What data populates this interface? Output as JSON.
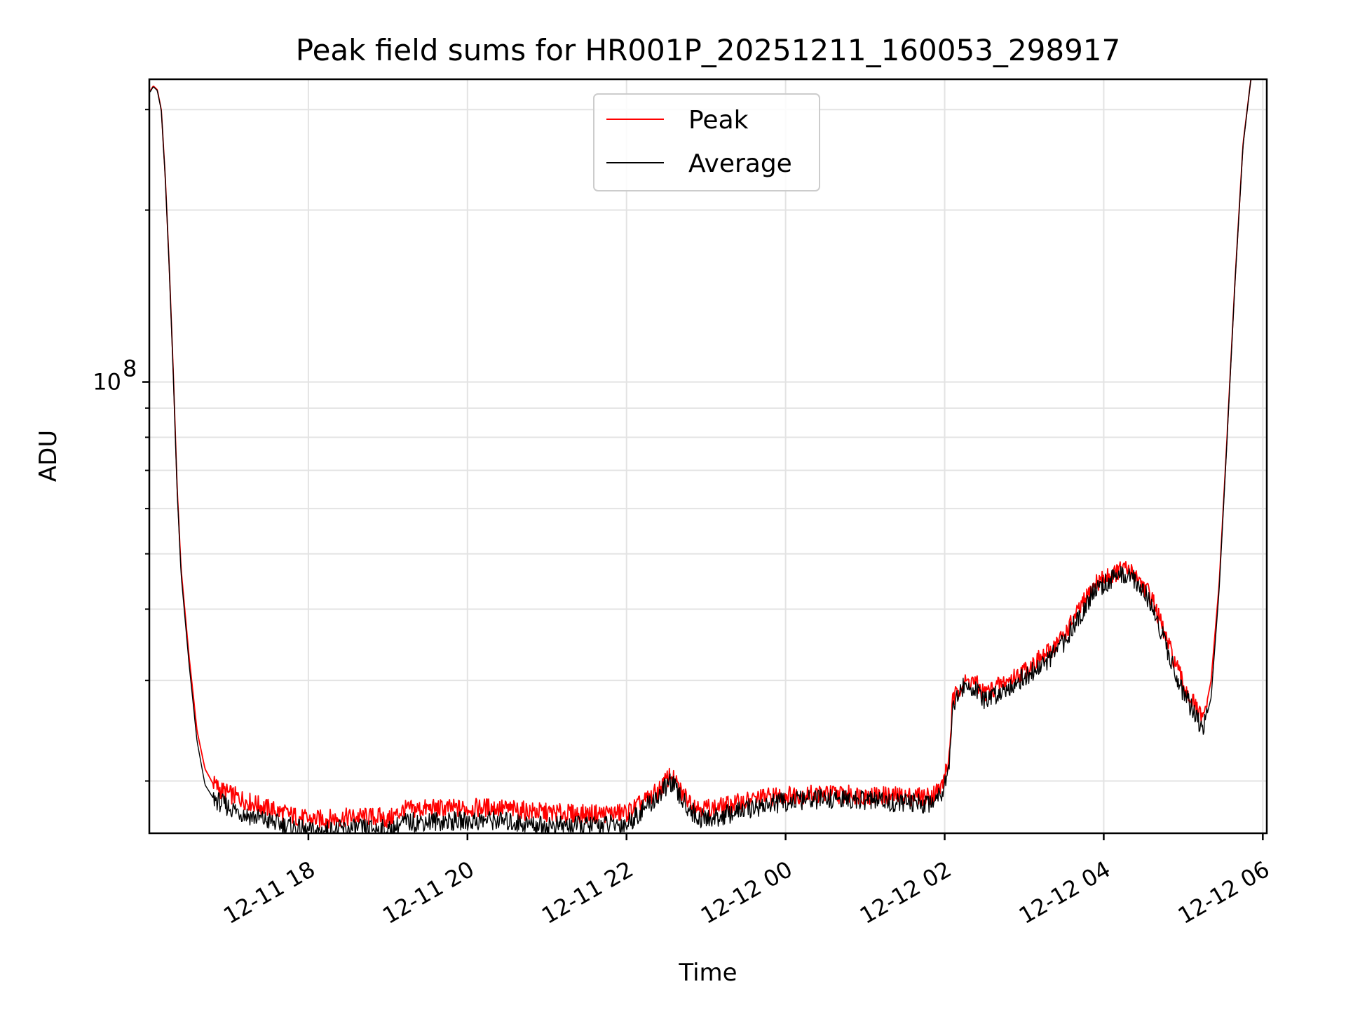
{
  "chart_data": {
    "type": "line",
    "title": "Peak field sums for HR001P_20251211_160053_298917",
    "xlabel": "Time",
    "ylabel": "ADU",
    "yscale": "log",
    "grid": true,
    "legend_position": "upper center",
    "x_unit": "hours since 12-11 16:00",
    "xlim": [
      16.0,
      30.05
    ],
    "ylim": [
      16200000,
      339000000
    ],
    "x_ticks": [
      {
        "value": 18,
        "label": "12-11 18"
      },
      {
        "value": 20,
        "label": "12-11 20"
      },
      {
        "value": 22,
        "label": "12-11 22"
      },
      {
        "value": 24,
        "label": "12-12 00"
      },
      {
        "value": 26,
        "label": "12-12 02"
      },
      {
        "value": 28,
        "label": "12-12 04"
      },
      {
        "value": 30,
        "label": "12-12 06"
      }
    ],
    "y_major_ticks": [
      {
        "value": 100000000,
        "base": "10",
        "exponent": "8"
      }
    ],
    "y_minor_ticks": [
      20000000,
      30000000,
      40000000,
      50000000,
      60000000,
      70000000,
      80000000,
      90000000,
      200000000,
      300000000
    ],
    "series": [
      {
        "name": "Peak",
        "color": "#ff0000",
        "x": [
          16.01,
          16.05,
          16.1,
          16.15,
          16.2,
          16.25,
          16.3,
          16.35,
          16.4,
          16.5,
          16.6,
          16.7,
          16.8,
          16.9,
          17.0,
          17.2,
          17.5,
          17.8,
          18.0,
          18.3,
          18.6,
          18.9,
          19.0,
          19.2,
          19.5,
          19.8,
          20.0,
          20.3,
          20.6,
          21.0,
          21.5,
          22.0,
          22.2,
          22.4,
          22.55,
          22.7,
          22.9,
          23.1,
          23.4,
          23.7,
          24.0,
          24.5,
          25.0,
          25.5,
          25.8,
          25.95,
          26.05,
          26.1,
          26.2,
          26.35,
          26.5,
          26.7,
          26.9,
          27.1,
          27.3,
          27.5,
          27.7,
          27.9,
          28.1,
          28.25,
          28.4,
          28.6,
          28.8,
          29.0,
          29.15,
          29.25,
          29.35,
          29.45,
          29.55,
          29.65,
          29.75,
          29.85,
          29.95,
          30.05
        ],
        "y": [
          323000000,
          330000000,
          325000000,
          300000000,
          230000000,
          160000000,
          105000000,
          65000000,
          47000000,
          33000000,
          24500000,
          21000000,
          19800000,
          19300000,
          19000000,
          18500000,
          17900000,
          17400000,
          17100000,
          17200000,
          17300000,
          17300000,
          17100000,
          17800000,
          17900000,
          17900000,
          17900000,
          18000000,
          17800000,
          17600000,
          17500000,
          17600000,
          18300000,
          19200000,
          20500000,
          19000000,
          18000000,
          17900000,
          18300000,
          18700000,
          18900000,
          19000000,
          18900000,
          18800000,
          18800000,
          19400000,
          21500000,
          27500000,
          29500000,
          30000000,
          28500000,
          29500000,
          30500000,
          32000000,
          33500000,
          36000000,
          40000000,
          44500000,
          46000000,
          47000000,
          46000000,
          42000000,
          35000000,
          29500000,
          27000000,
          25500000,
          30000000,
          44000000,
          80000000,
          150000000,
          260000000,
          339000000,
          339000000,
          339000000
        ]
      },
      {
        "name": "Average",
        "color": "#000000",
        "x": [
          16.01,
          16.05,
          16.1,
          16.15,
          16.2,
          16.25,
          16.3,
          16.35,
          16.4,
          16.5,
          16.6,
          16.7,
          16.8,
          16.9,
          17.0,
          17.2,
          17.5,
          17.8,
          18.0,
          18.3,
          18.6,
          18.9,
          19.0,
          19.2,
          19.5,
          19.8,
          20.0,
          20.3,
          20.6,
          21.0,
          21.5,
          22.0,
          22.2,
          22.4,
          22.55,
          22.7,
          22.9,
          23.1,
          23.4,
          23.7,
          24.0,
          24.5,
          25.0,
          25.5,
          25.8,
          25.95,
          26.05,
          26.1,
          26.2,
          26.35,
          26.5,
          26.7,
          26.9,
          27.1,
          27.3,
          27.5,
          27.7,
          27.9,
          28.1,
          28.25,
          28.4,
          28.6,
          28.8,
          29.0,
          29.15,
          29.25,
          29.35,
          29.45,
          29.55,
          29.65,
          29.75,
          29.85,
          29.95,
          30.05
        ],
        "y": [
          322000000,
          329000000,
          324000000,
          299000000,
          229000000,
          159000000,
          104000000,
          64000000,
          46000000,
          32000000,
          23500000,
          19700000,
          18700000,
          18300000,
          18000000,
          17500000,
          17000000,
          16600000,
          16300000,
          16400000,
          16500000,
          16500000,
          16300000,
          16900000,
          17000000,
          17000000,
          17000000,
          17100000,
          16900000,
          16700000,
          16700000,
          16800000,
          17800000,
          18800000,
          20000000,
          18500000,
          17200000,
          17200000,
          17700000,
          18100000,
          18400000,
          18600000,
          18500000,
          18300000,
          18300000,
          19000000,
          21000000,
          27000000,
          29000000,
          29300000,
          27500000,
          28700000,
          29800000,
          31000000,
          32500000,
          35000000,
          39000000,
          43500000,
          45000000,
          46000000,
          45000000,
          41000000,
          34000000,
          28500000,
          26000000,
          24500000,
          28000000,
          43000000,
          79000000,
          149000000,
          258000000,
          339000000,
          339000000,
          339000000
        ]
      }
    ]
  }
}
